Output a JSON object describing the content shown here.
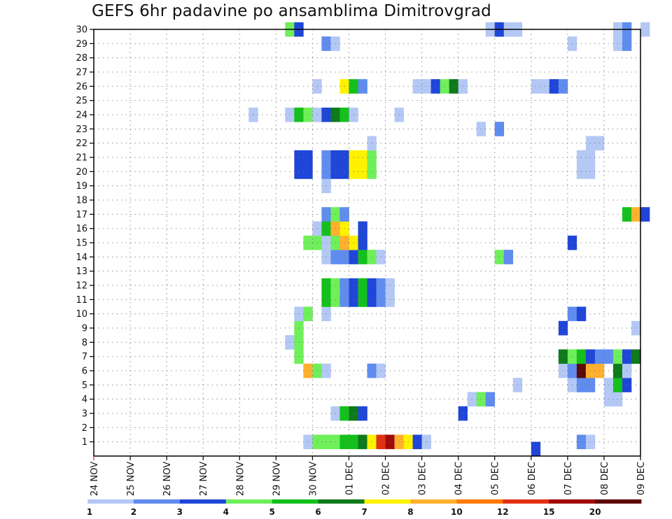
{
  "title": "GEFS 6hr padavine po ansamblima Dimitrovgrad",
  "chart_data": {
    "type": "heatmap",
    "title": "GEFS 6hr padavine po ansamblima Dimitrovgrad",
    "x_ticks": [
      "24 NOV",
      "25 NOV",
      "26 NOV",
      "27 NOV",
      "28 NOV",
      "29 NOV",
      "30 NOV",
      "01 DEC",
      "02 DEC",
      "03 DEC",
      "04 DEC",
      "05 DEC",
      "06 DEC",
      "07 DEC",
      "08 DEC",
      "09 DEC"
    ],
    "y_ticks": [
      1,
      2,
      3,
      4,
      5,
      6,
      7,
      8,
      9,
      10,
      11,
      12,
      13,
      14,
      15,
      16,
      17,
      18,
      19,
      20,
      21,
      22,
      23,
      24,
      25,
      26,
      27,
      28,
      29,
      30
    ],
    "ylim": [
      0,
      30
    ],
    "x_range_days": [
      0,
      15
    ],
    "grid": true,
    "time_step_hours": 6,
    "colorbar": {
      "labels": [
        "1",
        "2",
        "3",
        "4",
        "5",
        "6",
        "7",
        "8",
        "10",
        "12",
        "15",
        "20"
      ],
      "colors": [
        "#b4c8f5",
        "#5f8cee",
        "#1f46d8",
        "#6fef5a",
        "#14c01b",
        "#0f7a1b",
        "#fff200",
        "#ffb02e",
        "#ff7a00",
        "#e13012",
        "#a00a0a",
        "#5e0808"
      ]
    },
    "cells": [
      {
        "m": 1,
        "i": [
          [
            23,
            0
          ],
          [
            24,
            3
          ],
          [
            25,
            3
          ],
          [
            26,
            3
          ],
          [
            27,
            4
          ],
          [
            28,
            4
          ],
          [
            29,
            5
          ],
          [
            30,
            6
          ],
          [
            31,
            9
          ],
          [
            32,
            10
          ],
          [
            33,
            7
          ],
          [
            34,
            6
          ],
          [
            35,
            2
          ],
          [
            36,
            0
          ],
          [
            53,
            1
          ],
          [
            54,
            0
          ]
        ]
      },
      {
        "m": 3,
        "i": [
          [
            26,
            0
          ],
          [
            27,
            4
          ],
          [
            28,
            5
          ],
          [
            29,
            2
          ],
          [
            40,
            2
          ]
        ]
      },
      {
        "m": 4,
        "i": [
          [
            41,
            0
          ],
          [
            42,
            3
          ],
          [
            43,
            1
          ],
          [
            56,
            0
          ],
          [
            57,
            0
          ]
        ]
      },
      {
        "m": 5,
        "i": [
          [
            46,
            0
          ],
          [
            52,
            0
          ],
          [
            53,
            1
          ],
          [
            54,
            1
          ],
          [
            56,
            0
          ],
          [
            57,
            4
          ],
          [
            58,
            2
          ]
        ]
      },
      {
        "m": 6,
        "i": [
          [
            23,
            7
          ],
          [
            24,
            3
          ],
          [
            25,
            0
          ],
          [
            30,
            1
          ],
          [
            31,
            0
          ],
          [
            51,
            0
          ],
          [
            52,
            1
          ],
          [
            53,
            11
          ],
          [
            54,
            7
          ],
          [
            55,
            7
          ],
          [
            57,
            5
          ],
          [
            58,
            0
          ]
        ]
      },
      {
        "m": 7,
        "i": [
          [
            22,
            3
          ],
          [
            51,
            5
          ],
          [
            52,
            3
          ],
          [
            53,
            4
          ],
          [
            54,
            2
          ],
          [
            55,
            1
          ],
          [
            56,
            1
          ],
          [
            57,
            3
          ],
          [
            58,
            2
          ],
          [
            59,
            5
          ]
        ]
      },
      {
        "m": 8,
        "i": [
          [
            21,
            0
          ],
          [
            22,
            3
          ]
        ]
      },
      {
        "m": 9,
        "i": [
          [
            22,
            3
          ],
          [
            51,
            2
          ],
          [
            59,
            0
          ]
        ]
      },
      {
        "m": 10,
        "i": [
          [
            22,
            0
          ],
          [
            23,
            3
          ],
          [
            25,
            0
          ],
          [
            52,
            1
          ],
          [
            53,
            2
          ]
        ]
      },
      {
        "m": 11,
        "i": [
          [
            25,
            4
          ],
          [
            26,
            3
          ],
          [
            27,
            1
          ],
          [
            28,
            2
          ],
          [
            29,
            4
          ],
          [
            30,
            2
          ],
          [
            31,
            1
          ],
          [
            32,
            0
          ]
        ]
      },
      {
        "m": 12,
        "i": [
          [
            25,
            4
          ],
          [
            26,
            3
          ],
          [
            27,
            1
          ],
          [
            28,
            2
          ],
          [
            29,
            4
          ],
          [
            30,
            2
          ],
          [
            31,
            1
          ],
          [
            32,
            0
          ]
        ]
      },
      {
        "m": 14,
        "i": [
          [
            25,
            0
          ],
          [
            26,
            1
          ],
          [
            27,
            1
          ],
          [
            28,
            2
          ],
          [
            29,
            4
          ],
          [
            30,
            3
          ],
          [
            31,
            0
          ],
          [
            44,
            3
          ],
          [
            45,
            1
          ]
        ]
      },
      {
        "m": 15,
        "i": [
          [
            23,
            3
          ],
          [
            24,
            3
          ],
          [
            25,
            0
          ],
          [
            26,
            3
          ],
          [
            27,
            7
          ],
          [
            28,
            6
          ],
          [
            29,
            2
          ],
          [
            52,
            2
          ]
        ]
      },
      {
        "m": 16,
        "i": [
          [
            24,
            0
          ],
          [
            25,
            4
          ],
          [
            26,
            7
          ],
          [
            27,
            6
          ],
          [
            29,
            2
          ]
        ]
      },
      {
        "m": 17,
        "i": [
          [
            25,
            1
          ],
          [
            26,
            3
          ],
          [
            27,
            1
          ],
          [
            58,
            4
          ],
          [
            59,
            7
          ],
          [
            60,
            2
          ]
        ]
      },
      {
        "m": 19,
        "i": [
          [
            25,
            0
          ]
        ]
      },
      {
        "m": 20,
        "i": [
          [
            22,
            2
          ],
          [
            23,
            2
          ],
          [
            25,
            1
          ],
          [
            26,
            2
          ],
          [
            27,
            2
          ],
          [
            28,
            6
          ],
          [
            29,
            6
          ],
          [
            30,
            3
          ],
          [
            53,
            0
          ],
          [
            54,
            0
          ]
        ]
      },
      {
        "m": 21,
        "i": [
          [
            22,
            2
          ],
          [
            23,
            2
          ],
          [
            25,
            1
          ],
          [
            26,
            2
          ],
          [
            27,
            2
          ],
          [
            28,
            6
          ],
          [
            29,
            6
          ],
          [
            30,
            3
          ],
          [
            53,
            0
          ],
          [
            54,
            0
          ]
        ]
      },
      {
        "m": 22,
        "i": [
          [
            30,
            0
          ],
          [
            54,
            0
          ],
          [
            55,
            0
          ]
        ]
      },
      {
        "m": 23,
        "i": [
          [
            42,
            0
          ],
          [
            44,
            1
          ]
        ]
      },
      {
        "m": 24,
        "i": [
          [
            17,
            0
          ],
          [
            21,
            0
          ],
          [
            22,
            4
          ],
          [
            23,
            3
          ],
          [
            24,
            0
          ],
          [
            25,
            2
          ],
          [
            26,
            5
          ],
          [
            27,
            4
          ],
          [
            28,
            0
          ],
          [
            33,
            0
          ]
        ]
      },
      {
        "m": 26,
        "i": [
          [
            24,
            0
          ],
          [
            27,
            6
          ],
          [
            28,
            4
          ],
          [
            29,
            1
          ],
          [
            35,
            0
          ],
          [
            36,
            0
          ],
          [
            37,
            2
          ],
          [
            38,
            3
          ],
          [
            39,
            5
          ],
          [
            40,
            0
          ],
          [
            48,
            0
          ],
          [
            49,
            0
          ],
          [
            50,
            2
          ],
          [
            51,
            1
          ]
        ]
      },
      {
        "m": 29,
        "i": [
          [
            25,
            1
          ],
          [
            26,
            0
          ],
          [
            52,
            0
          ],
          [
            57,
            0
          ],
          [
            58,
            1
          ]
        ]
      },
      {
        "m": 30,
        "i": [
          [
            21,
            3
          ],
          [
            22,
            2
          ],
          [
            43,
            0
          ],
          [
            44,
            2
          ],
          [
            45,
            0
          ],
          [
            46,
            0
          ],
          [
            57,
            0
          ],
          [
            58,
            1
          ],
          [
            60,
            0
          ]
        ]
      }
    ],
    "extra_cells": [
      {
        "m": 0.5,
        "i": [
          [
            48,
            2
          ]
        ]
      }
    ]
  }
}
